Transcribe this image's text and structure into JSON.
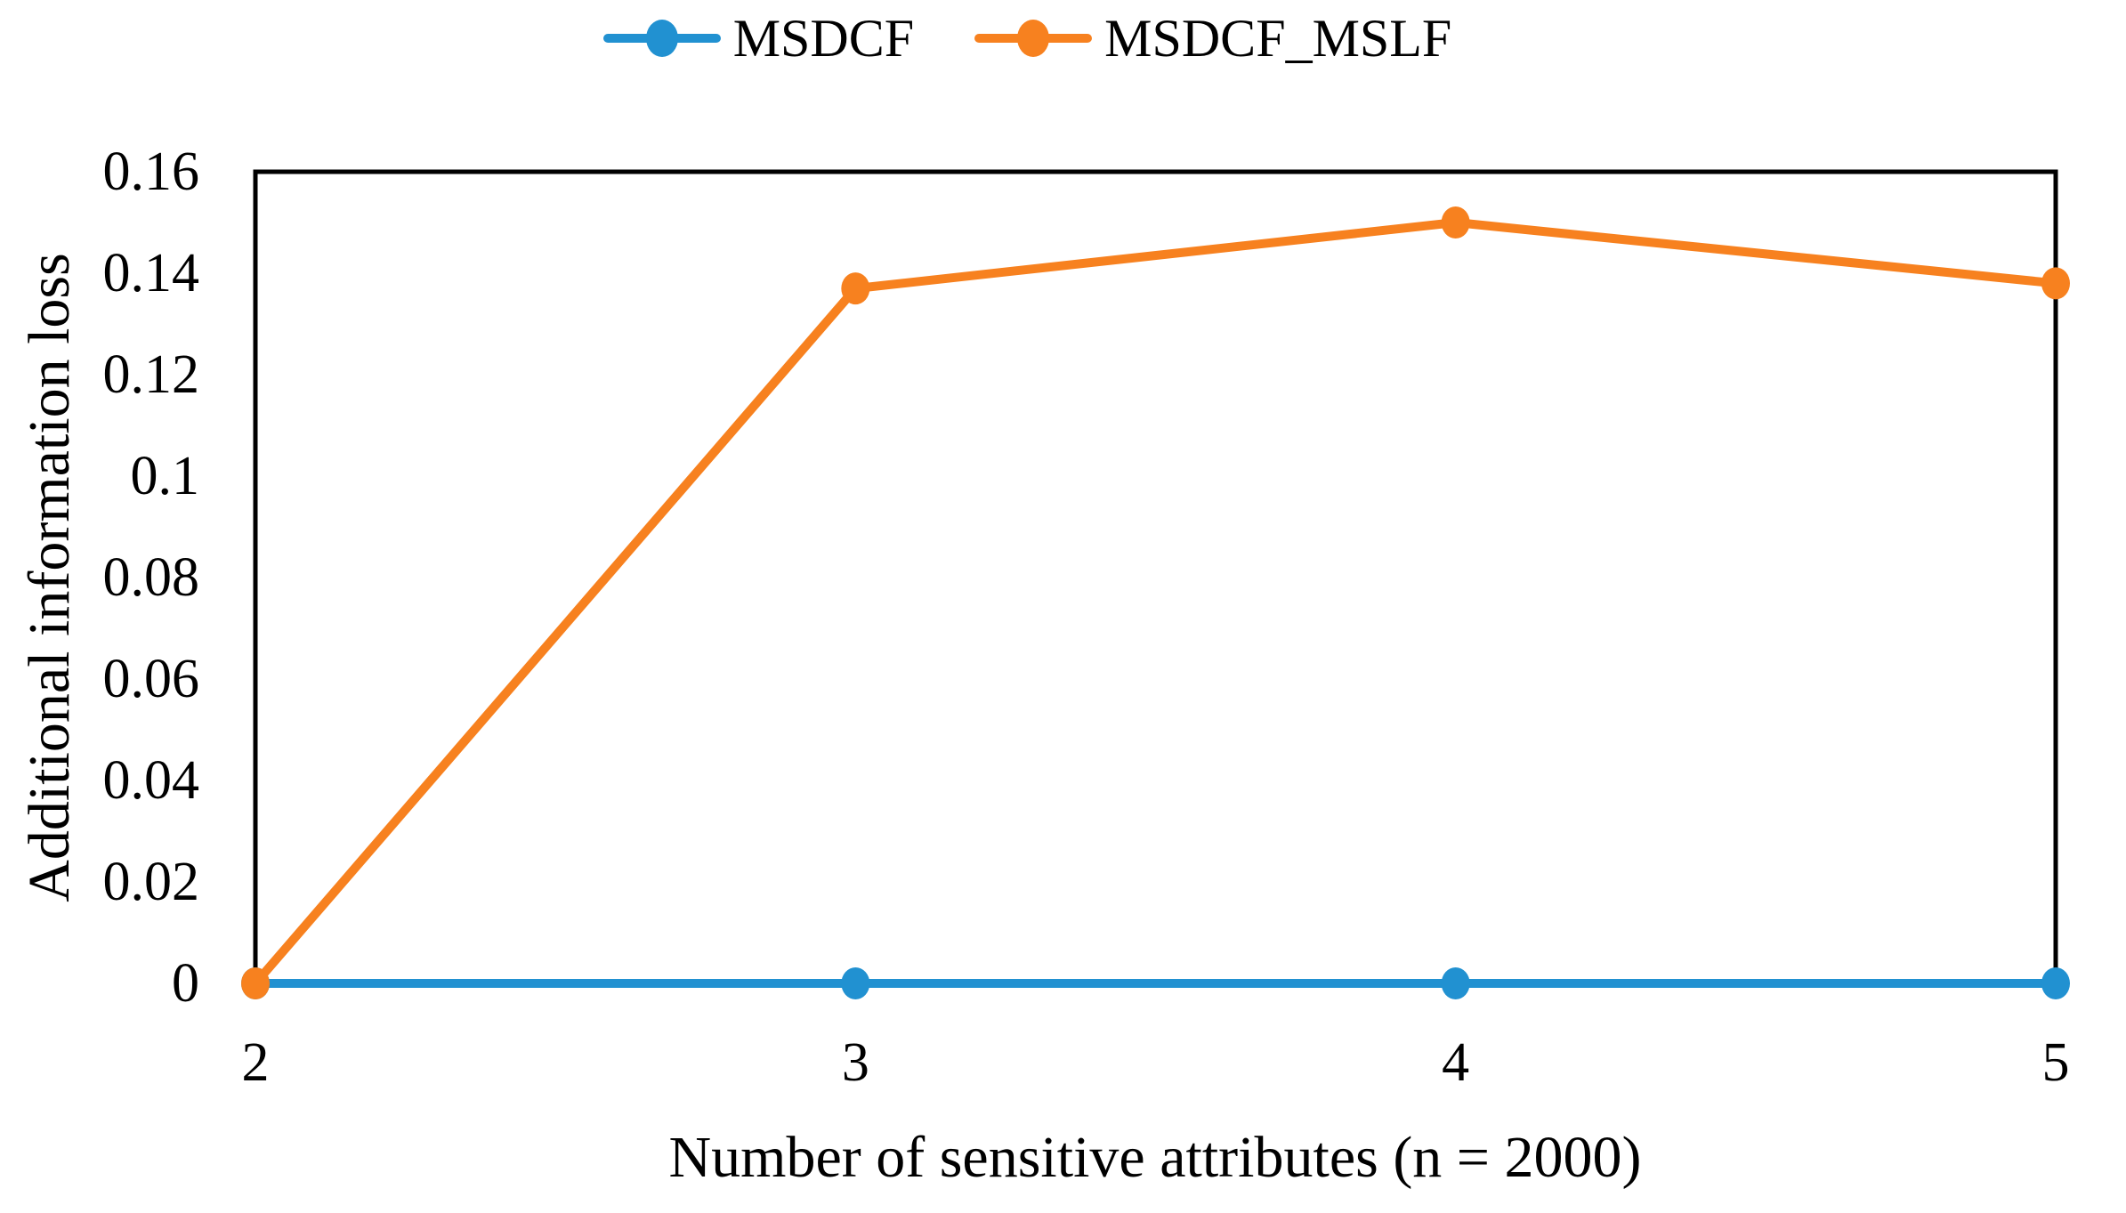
{
  "figure": {
    "background": "#ffffff",
    "axis_color": "#000000",
    "text_color": "#000000"
  },
  "chart_data": {
    "type": "line",
    "x": [
      2,
      3,
      4,
      5
    ],
    "xtick_labels": [
      "2",
      "3",
      "4",
      "5"
    ],
    "series": [
      {
        "name": "MSDCF",
        "color": "#2191D1",
        "values": [
          0,
          0,
          0,
          0
        ]
      },
      {
        "name": "MSDCF_MSLF",
        "color": "#F7811F",
        "values": [
          0,
          0.137,
          0.15,
          0.138
        ]
      }
    ],
    "xlabel": "Number of sensitive attributes (n = 2000)",
    "ylabel": "Additional information loss",
    "xlim": [
      2,
      5
    ],
    "ylim": [
      0,
      0.16
    ],
    "yticks": [
      0,
      0.02,
      0.04,
      0.06,
      0.08,
      0.1,
      0.12,
      0.14,
      0.16
    ],
    "ytick_labels": [
      "0",
      "0.02",
      "0.04",
      "0.06",
      "0.08",
      "0.1",
      "0.12",
      "0.14",
      "0.16"
    ],
    "grid": false,
    "legend_position": "top center",
    "marker": "circle",
    "line_width": 10
  }
}
